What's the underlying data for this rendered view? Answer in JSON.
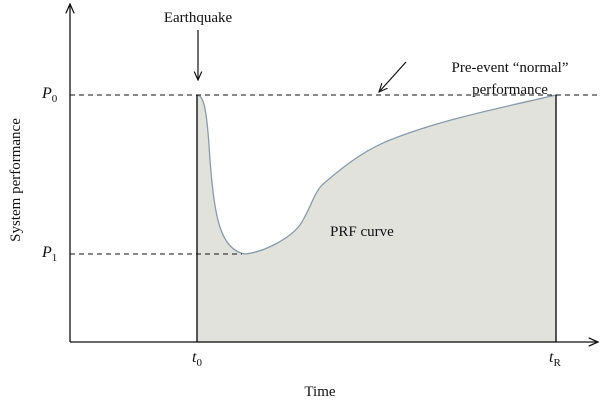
{
  "event_label": "Earthquake",
  "normal_label": [
    "Pre-event “normal”",
    "performance"
  ],
  "curve_label": "PRF curve",
  "y_axis_label": "System performance",
  "x_axis_label": "Time",
  "p0": {
    "symbol": "P",
    "subscript": "0"
  },
  "p1": {
    "symbol": "P",
    "subscript": "1"
  },
  "t0": {
    "symbol": "t",
    "subscript": "0"
  },
  "tR": {
    "symbol": "t",
    "subscript": "R"
  }
}
